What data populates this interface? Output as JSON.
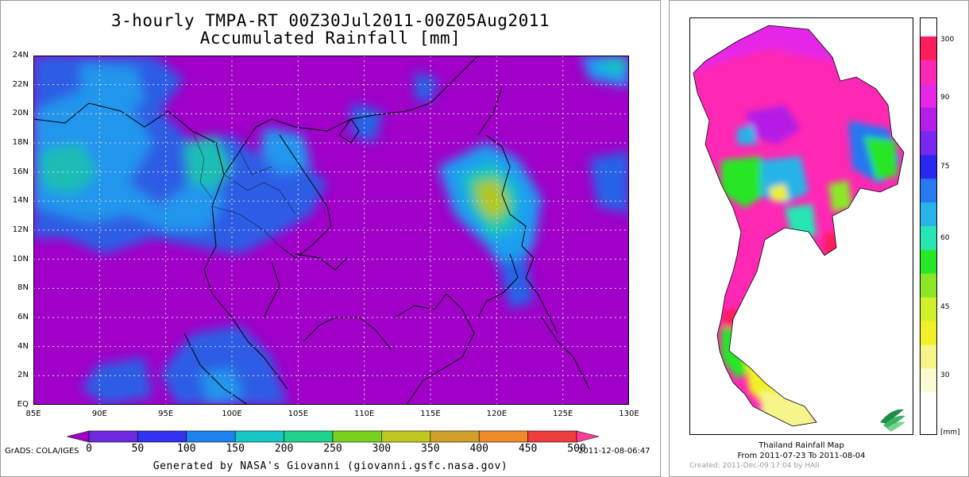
{
  "left_map": {
    "title_line1": "3-hourly TMPA-RT 00Z30Jul2011-00Z05Aug2011",
    "title_line2": "Accumulated Rainfall [mm]",
    "lat_labels": [
      "24N",
      "22N",
      "20N",
      "18N",
      "16N",
      "14N",
      "12N",
      "10N",
      "8N",
      "6N",
      "4N",
      "2N",
      "EQ"
    ],
    "lon_labels": [
      "85E",
      "90E",
      "95E",
      "100E",
      "105E",
      "110E",
      "115E",
      "120E",
      "125E",
      "130E"
    ],
    "lat_range": [
      0,
      24
    ],
    "lon_range": [
      85,
      130
    ],
    "colorbar_values": [
      "0",
      "50",
      "100",
      "150",
      "200",
      "250",
      "300",
      "350",
      "400",
      "450",
      "500"
    ],
    "colorbar_colors": [
      "#a000c8",
      "#6e28e0",
      "#3232f0",
      "#1e82f0",
      "#14c8c8",
      "#1ed28c",
      "#78d21e",
      "#bec81e",
      "#d2a028",
      "#f08c28",
      "#f03c3c",
      "#ff3c96"
    ],
    "grads_label": "GrADS: COLA/IGES",
    "timestamp": "2011-12-08-06:47",
    "credit": "Generated by NASA's Giovanni (giovanni.gsfc.nasa.gov)",
    "background_color": "#a000c8"
  },
  "thailand_map": {
    "title": "Thailand Rainfall Map",
    "range": "From 2011-07-23  To 2011-08-04",
    "created": "Created: 2011-Dec-09 17:04 by HAII",
    "colorbar_ticks": [
      "300",
      "90",
      "75",
      "60",
      "45",
      "30",
      "[mm]"
    ],
    "colorbar_colors": [
      "#ff1e5a",
      "#ff28b4",
      "#e628e6",
      "#b41ee6",
      "#7828f0",
      "#2828f0",
      "#2878f0",
      "#28b4e6",
      "#28e6b4",
      "#28e628",
      "#8ce628",
      "#d2f028",
      "#f0f028",
      "#f5f58c",
      "#fafad2",
      "#ffffff"
    ]
  }
}
